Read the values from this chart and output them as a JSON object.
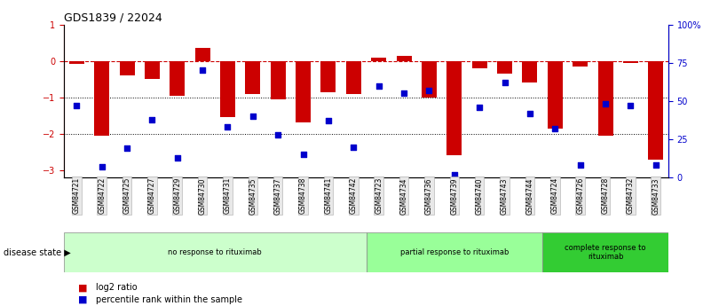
{
  "title": "GDS1839 / 22024",
  "samples": [
    "GSM84721",
    "GSM84722",
    "GSM84725",
    "GSM84727",
    "GSM84729",
    "GSM84730",
    "GSM84731",
    "GSM84735",
    "GSM84737",
    "GSM84738",
    "GSM84741",
    "GSM84742",
    "GSM84723",
    "GSM84734",
    "GSM84736",
    "GSM84739",
    "GSM84740",
    "GSM84743",
    "GSM84744",
    "GSM84724",
    "GSM84726",
    "GSM84728",
    "GSM84732",
    "GSM84733"
  ],
  "log2_ratio": [
    -0.08,
    -2.05,
    -0.4,
    -0.5,
    -0.95,
    0.35,
    -1.55,
    -0.9,
    -1.05,
    -1.7,
    -0.85,
    -0.9,
    0.1,
    0.15,
    -1.0,
    -2.6,
    -0.2,
    -0.35,
    -0.6,
    -1.85,
    -0.15,
    -2.05,
    -0.05,
    -2.7
  ],
  "percentile_rank": [
    47,
    7,
    19,
    38,
    13,
    70,
    33,
    40,
    28,
    15,
    37,
    20,
    60,
    55,
    57,
    2,
    46,
    62,
    42,
    32,
    8,
    48,
    47,
    8
  ],
  "groups": [
    {
      "label": "no response to rituximab",
      "start": 0,
      "end": 12,
      "color": "#ccffcc"
    },
    {
      "label": "partial response to rituximab",
      "start": 12,
      "end": 19,
      "color": "#99ff99"
    },
    {
      "label": "complete response to\nrituximab",
      "start": 19,
      "end": 24,
      "color": "#33cc33"
    }
  ],
  "bar_color": "#cc0000",
  "dot_color": "#0000cc",
  "ylim_left": [
    -3.2,
    1.0
  ],
  "ylim_right": [
    0,
    100
  ],
  "yticks_left": [
    -3,
    -2,
    -1,
    0,
    1
  ],
  "yticks_right": [
    0,
    25,
    50,
    75,
    100
  ],
  "ytick_labels_right": [
    "0",
    "25",
    "50",
    "75",
    "100%"
  ],
  "hline_zero": 0,
  "hlines_dotted": [
    -1,
    -2
  ],
  "disease_state_label": "disease state"
}
